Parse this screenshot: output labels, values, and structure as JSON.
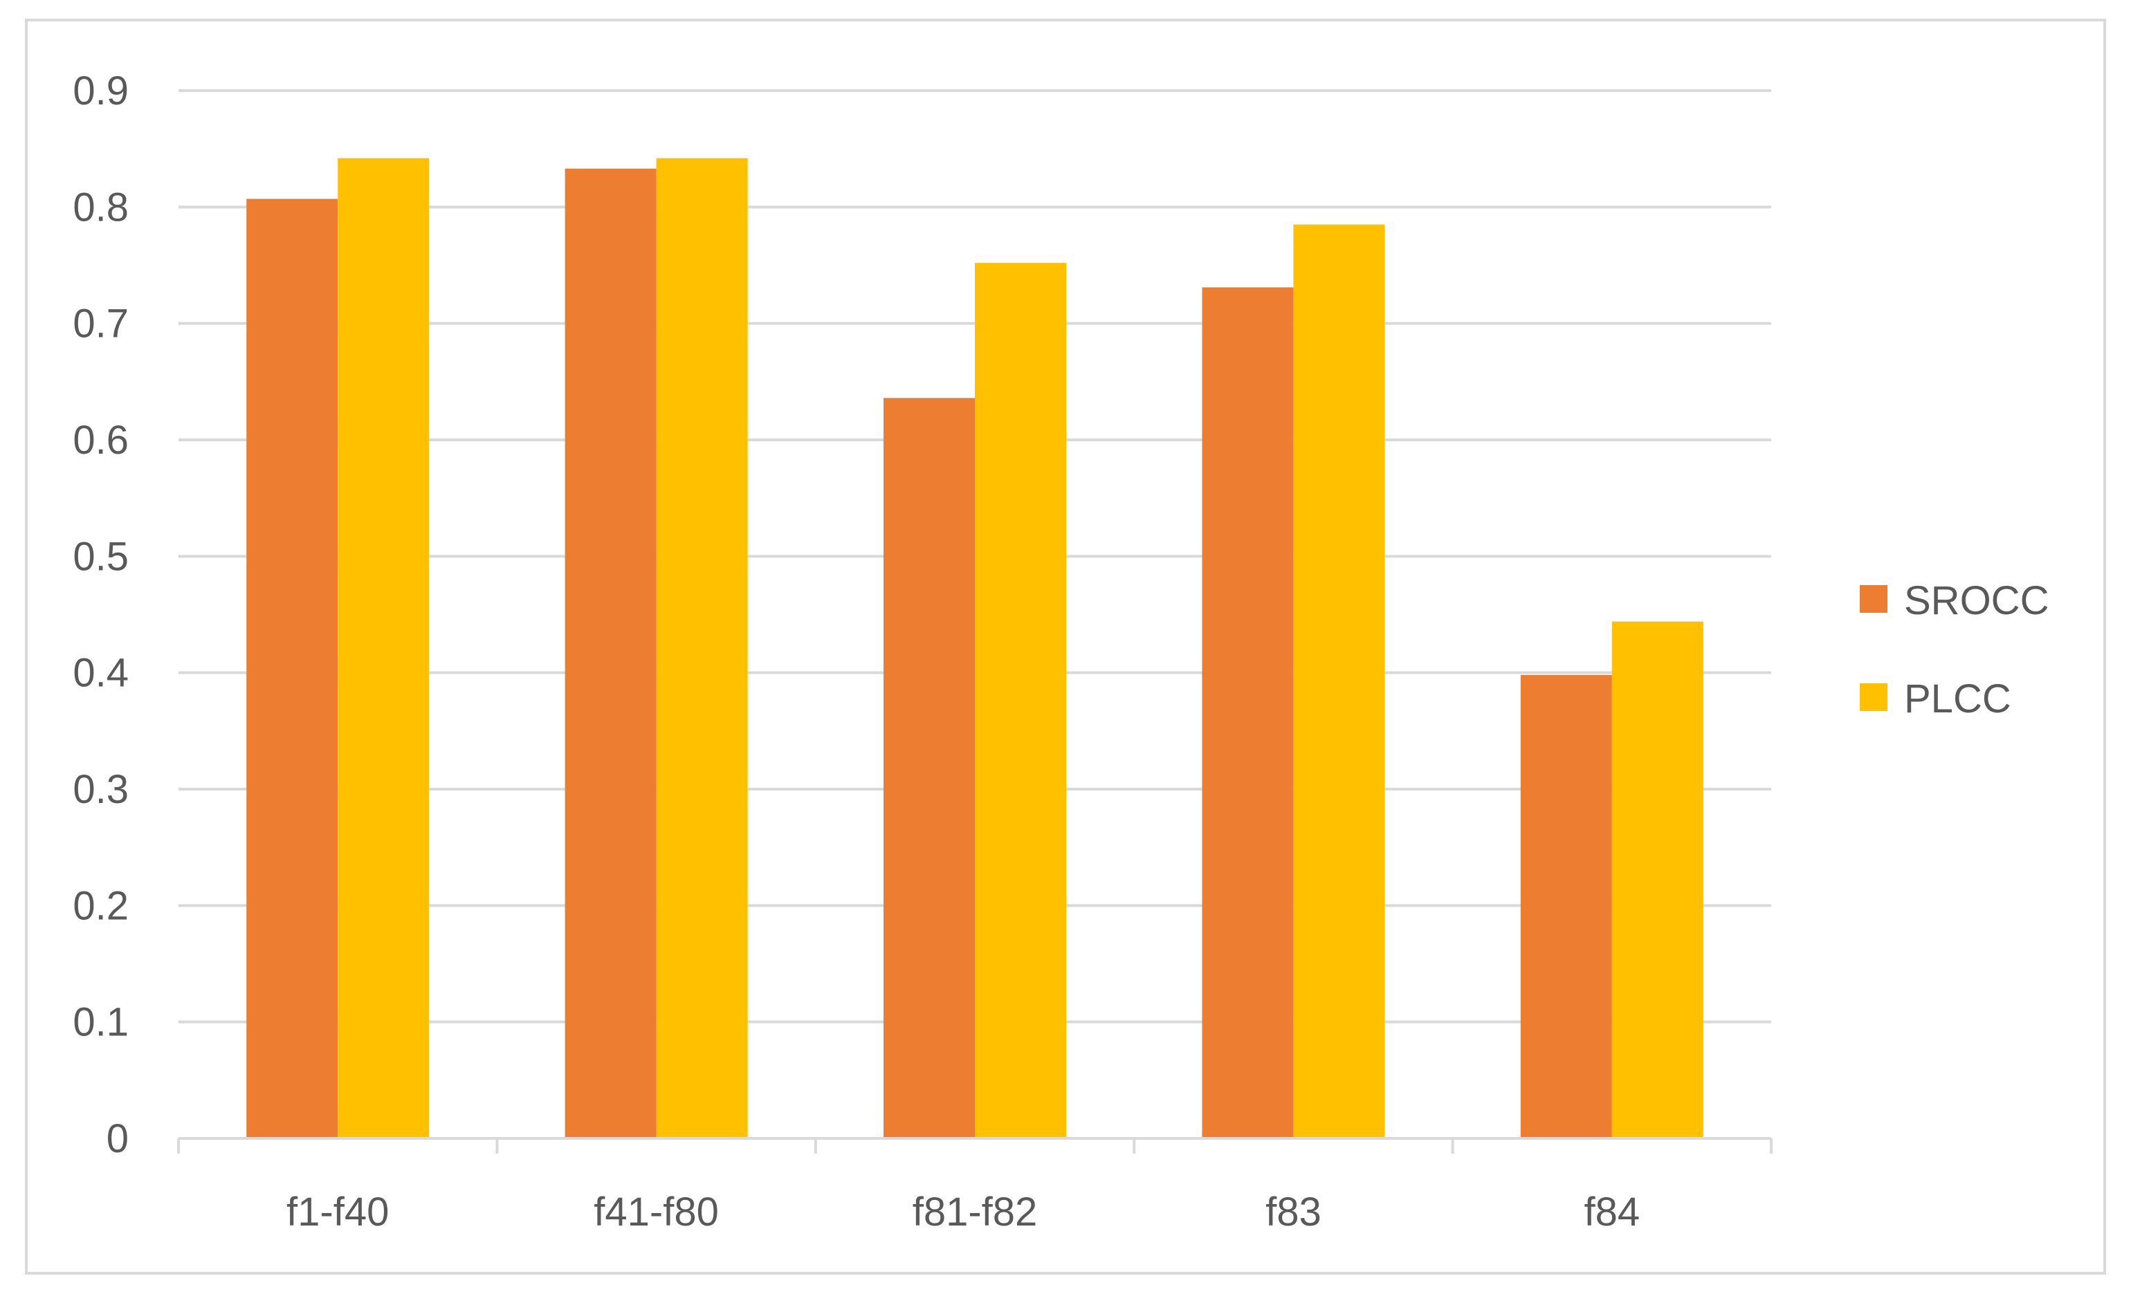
{
  "chart_data": {
    "type": "bar",
    "title": "",
    "xlabel": "",
    "ylabel": "",
    "categories": [
      "f1-f40",
      "f41-f80",
      "f81-f82",
      "f83",
      "f84"
    ],
    "series": [
      {
        "name": "SROCC",
        "color": "#ED7D31",
        "values": [
          0.807,
          0.833,
          0.636,
          0.731,
          0.398
        ]
      },
      {
        "name": "PLCC",
        "color": "#FFC000",
        "values": [
          0.842,
          0.842,
          0.752,
          0.785,
          0.444
        ]
      }
    ],
    "ylim": [
      0,
      0.9
    ],
    "yticks": [
      "0",
      "0.1",
      "0.2",
      "0.3",
      "0.4",
      "0.5",
      "0.6",
      "0.7",
      "0.8",
      "0.9"
    ],
    "grid": true,
    "legend_position": "right"
  }
}
